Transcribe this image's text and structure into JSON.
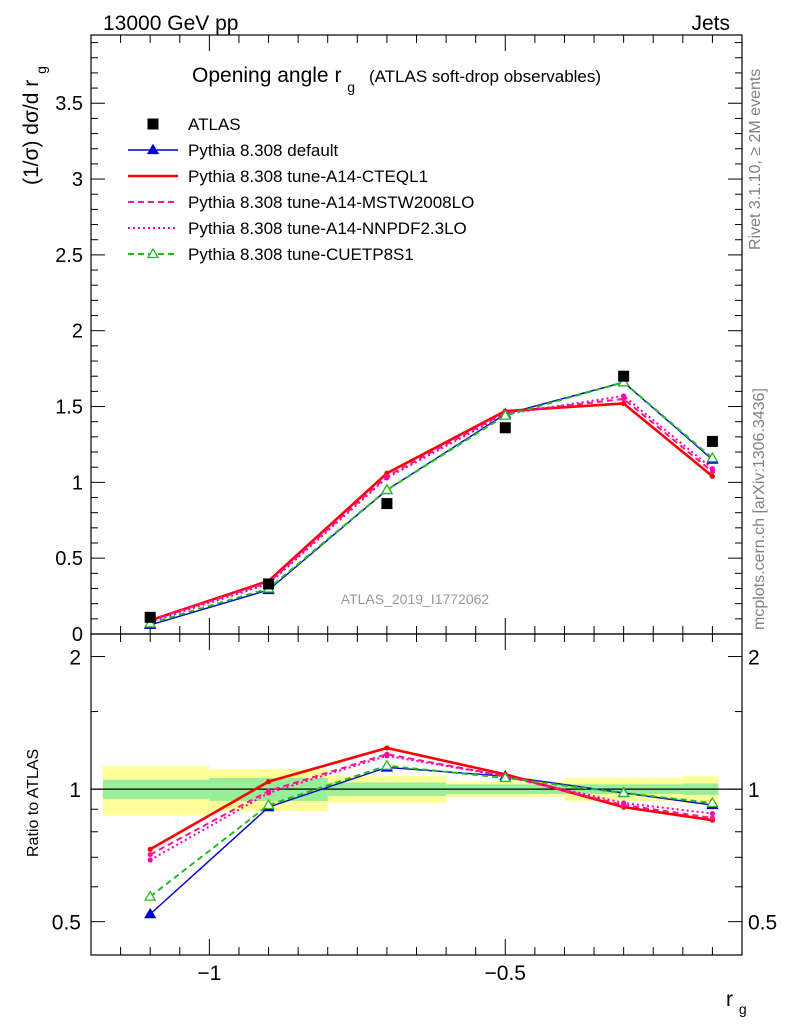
{
  "header": {
    "left": "13000 GeV pp",
    "right": "Jets"
  },
  "side_labels": {
    "rivet": "Rivet 3.1.10, ≥ 2M events",
    "mcplots": "mcplots.cern.ch [arXiv:1306.3436]"
  },
  "chart_data": [
    {
      "type": "line",
      "title": "Opening angle r",
      "title_sub": "g",
      "title_suffix": "(ATLAS soft-drop observables)",
      "ylabel": "(1/σ) dσ/d r",
      "ylabel_sub": "g",
      "analysis_label": "ATLAS_2019_I1772062",
      "xlim": [
        -1.2,
        -0.1
      ],
      "ylim": [
        0,
        3.95
      ],
      "y_ticks": [
        "0",
        "0.5",
        "1",
        "1.5",
        "2",
        "2.5",
        "3",
        "3.5"
      ],
      "legend_position": "top-left",
      "x": [
        -1.1,
        -0.9,
        -0.7,
        -0.5,
        -0.3,
        -0.15
      ],
      "data": {
        "name": "ATLAS",
        "values": [
          0.11,
          0.33,
          0.86,
          1.36,
          1.7,
          1.27
        ],
        "color": "#000000"
      },
      "series": [
        {
          "name": "Pythia 8.308 default",
          "values": [
            0.06,
            0.29,
            0.95,
            1.45,
            1.66,
            1.15
          ],
          "color": "#0000cc",
          "style": "solid",
          "marker": "triangle-filled"
        },
        {
          "name": "Pythia 8.308 tune-A14-CTEQL1",
          "values": [
            0.09,
            0.35,
            1.06,
            1.47,
            1.52,
            1.04
          ],
          "color": "#ff0000",
          "style": "solid-thick",
          "marker": "circle-small"
        },
        {
          "name": "Pythia 8.308 tune-A14-MSTW2008LO",
          "values": [
            0.09,
            0.34,
            1.04,
            1.46,
            1.55,
            1.07
          ],
          "color": "#ff1493",
          "style": "dashed",
          "marker": "circle-small"
        },
        {
          "name": "Pythia 8.308 tune-A14-NNPDF2.3LO",
          "values": [
            0.08,
            0.33,
            1.03,
            1.45,
            1.57,
            1.09
          ],
          "color": "#ff00aa",
          "style": "dotted",
          "marker": "circle-small"
        },
        {
          "name": "Pythia 8.308 tune-CUETP8S1",
          "values": [
            0.07,
            0.3,
            0.95,
            1.44,
            1.66,
            1.16
          ],
          "color": "#22bb22",
          "style": "dashed",
          "marker": "triangle-open"
        }
      ]
    },
    {
      "type": "line",
      "ylabel": "Ratio to ATLAS",
      "xlabel": "r",
      "xlabel_sub": "g",
      "xlim": [
        -1.2,
        -0.1
      ],
      "x_ticks": [
        "−1",
        "−0.5"
      ],
      "x_tick_values": [
        -1,
        -0.5
      ],
      "y_log": true,
      "ylim": [
        0.42,
        2.25
      ],
      "y_ticks": [
        "0.5",
        "1",
        "2"
      ],
      "y_tick_values": [
        0.5,
        1,
        2
      ],
      "bins": [
        {
          "x_low": -1.2,
          "x_high": -1.0,
          "stat": 0.05,
          "total": 0.13
        },
        {
          "x_low": -1.0,
          "x_high": -0.8,
          "stat": 0.06,
          "total": 0.11
        },
        {
          "x_low": -0.8,
          "x_high": -0.6,
          "stat": 0.035,
          "total": 0.07
        },
        {
          "x_low": -0.6,
          "x_high": -0.4,
          "stat": 0.025,
          "total": 0.04
        },
        {
          "x_low": -0.4,
          "x_high": -0.2,
          "stat": 0.025,
          "total": 0.06
        },
        {
          "x_low": -0.2,
          "x_high": -0.1,
          "stat": 0.03,
          "total": 0.07
        }
      ],
      "x": [
        -1.1,
        -0.9,
        -0.7,
        -0.5,
        -0.3,
        -0.15
      ],
      "series": [
        {
          "name": "Pythia 8.308 default",
          "values": [
            0.52,
            0.91,
            1.12,
            1.07,
            0.98,
            0.92
          ]
        },
        {
          "name": "Pythia 8.308 tune-A14-CTEQL1",
          "values": [
            0.73,
            1.04,
            1.24,
            1.08,
            0.91,
            0.85
          ]
        },
        {
          "name": "Pythia 8.308 tune-A14-MSTW2008LO",
          "values": [
            0.71,
            0.99,
            1.2,
            1.07,
            0.92,
            0.86
          ]
        },
        {
          "name": "Pythia 8.308 tune-A14-NNPDF2.3LO",
          "values": [
            0.69,
            0.98,
            1.19,
            1.07,
            0.93,
            0.88
          ]
        },
        {
          "name": "Pythia 8.308 tune-CUETP8S1",
          "values": [
            0.57,
            0.92,
            1.13,
            1.06,
            0.98,
            0.93
          ]
        }
      ]
    }
  ]
}
